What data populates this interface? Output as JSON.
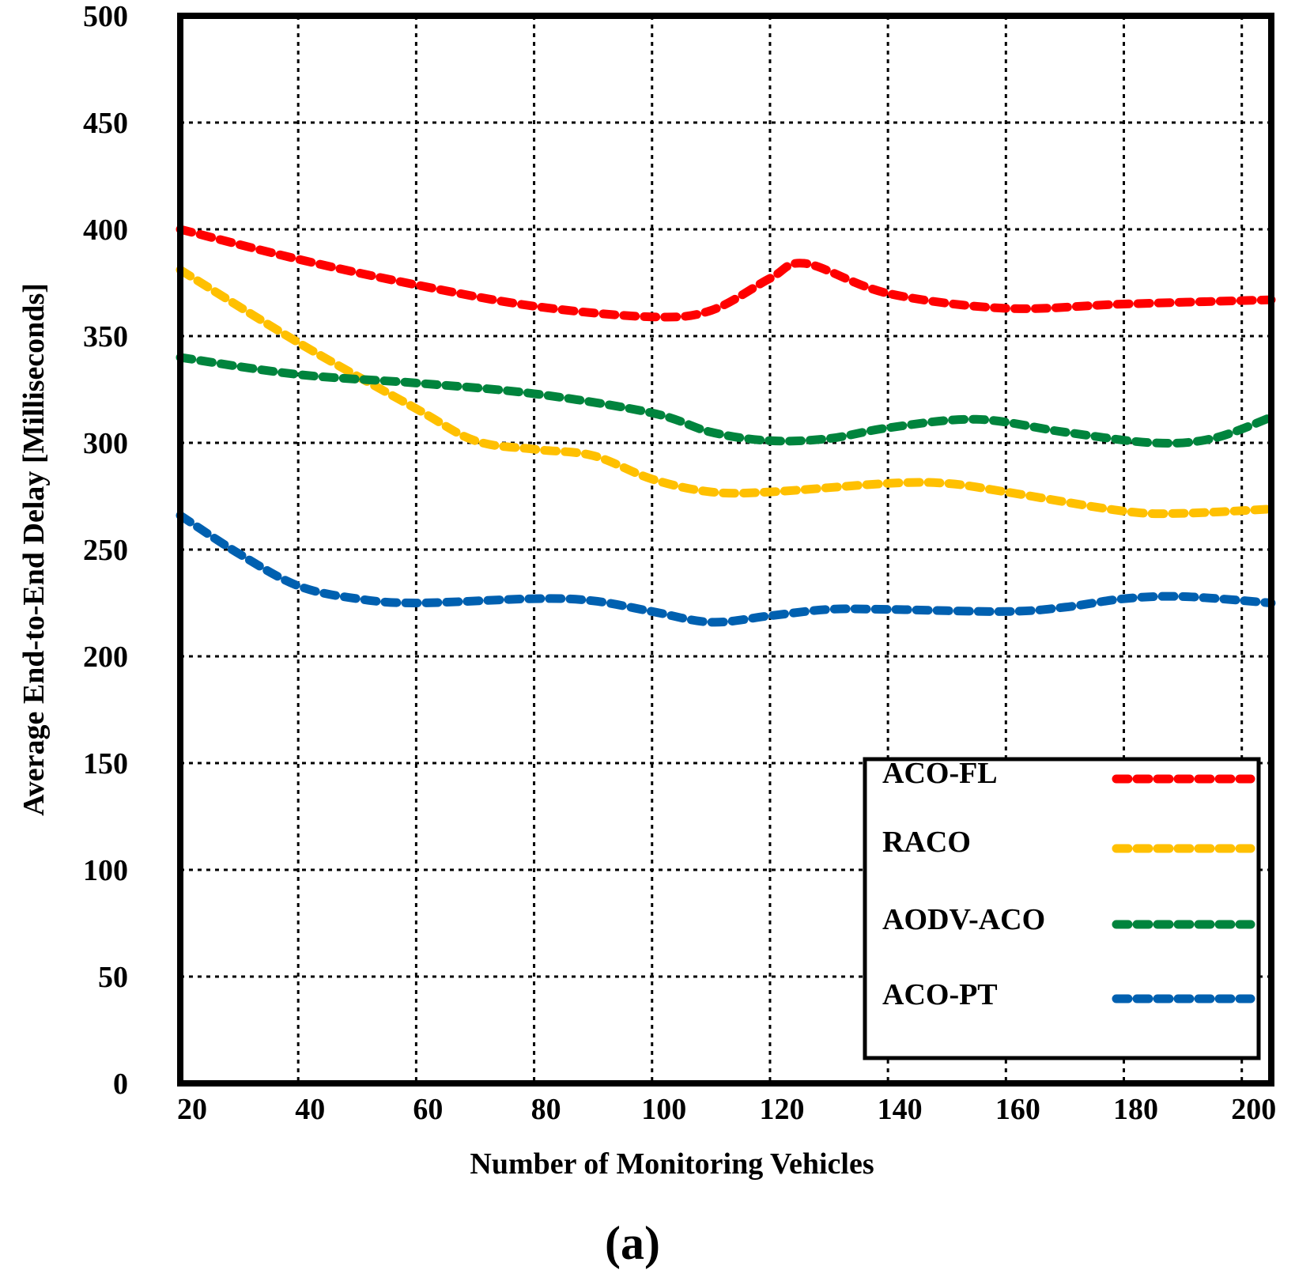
{
  "chart_data": {
    "type": "line",
    "caption": "(a)",
    "xlabel": "Number of Monitoring Vehicles",
    "ylabel": "Average End-to-End Delay [Milliseconds]",
    "xlim": [
      20,
      205
    ],
    "ylim": [
      0,
      500
    ],
    "x_ticks": [
      20,
      40,
      60,
      80,
      100,
      120,
      140,
      160,
      180,
      200
    ],
    "y_ticks": [
      0,
      50,
      100,
      150,
      200,
      250,
      300,
      350,
      400,
      450,
      500
    ],
    "grid": true,
    "legend_position": "bottom-right",
    "series": [
      {
        "name": "ACO-FL",
        "color": "#ff0000",
        "points": [
          [
            20,
            400
          ],
          [
            40,
            386
          ],
          [
            60,
            374
          ],
          [
            80,
            364
          ],
          [
            100,
            359
          ],
          [
            110,
            362
          ],
          [
            120,
            377
          ],
          [
            126,
            384
          ],
          [
            140,
            370
          ],
          [
            160,
            363
          ],
          [
            180,
            365
          ],
          [
            205,
            367
          ]
        ]
      },
      {
        "name": "RACO",
        "color": "#ffc000",
        "points": [
          [
            20,
            381
          ],
          [
            40,
            347
          ],
          [
            60,
            316
          ],
          [
            70,
            301
          ],
          [
            80,
            297
          ],
          [
            90,
            294
          ],
          [
            100,
            283
          ],
          [
            110,
            277
          ],
          [
            120,
            277
          ],
          [
            140,
            281
          ],
          [
            150,
            281
          ],
          [
            160,
            277
          ],
          [
            180,
            268
          ],
          [
            190,
            267
          ],
          [
            205,
            269
          ]
        ]
      },
      {
        "name": "AODV-ACO",
        "color": "#00843d",
        "points": [
          [
            20,
            340
          ],
          [
            40,
            332
          ],
          [
            60,
            328
          ],
          [
            80,
            323
          ],
          [
            100,
            314
          ],
          [
            110,
            305
          ],
          [
            120,
            301
          ],
          [
            130,
            302
          ],
          [
            140,
            307
          ],
          [
            155,
            311
          ],
          [
            170,
            305
          ],
          [
            185,
            300
          ],
          [
            195,
            302
          ],
          [
            205,
            312
          ]
        ]
      },
      {
        "name": "ACO-PT",
        "color": "#0060b0",
        "points": [
          [
            20,
            266
          ],
          [
            30,
            248
          ],
          [
            40,
            233
          ],
          [
            50,
            227
          ],
          [
            60,
            225
          ],
          [
            80,
            227
          ],
          [
            90,
            226
          ],
          [
            100,
            221
          ],
          [
            110,
            216
          ],
          [
            120,
            219
          ],
          [
            130,
            222
          ],
          [
            140,
            222
          ],
          [
            160,
            221
          ],
          [
            170,
            223
          ],
          [
            180,
            227
          ],
          [
            190,
            228
          ],
          [
            205,
            225
          ]
        ]
      }
    ]
  }
}
